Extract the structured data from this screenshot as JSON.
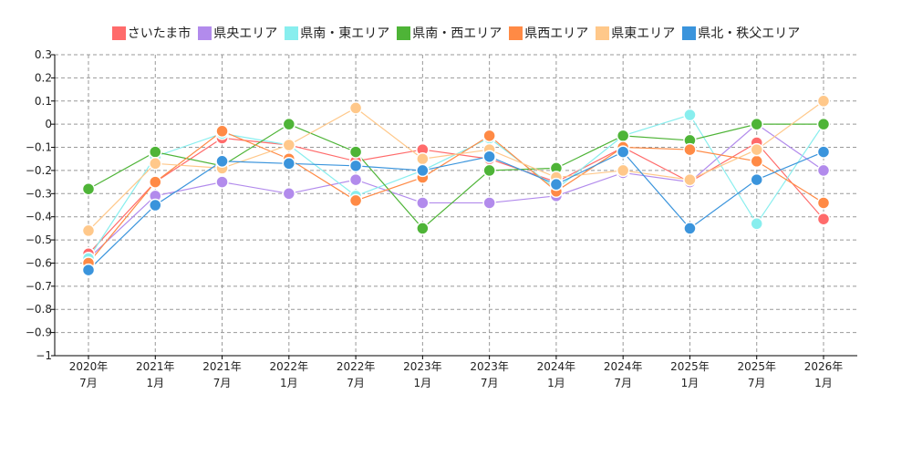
{
  "chart_data": {
    "type": "line",
    "title": "",
    "xlabel": "",
    "ylabel": "",
    "ylim": [
      -1,
      0.3
    ],
    "yticks": [
      "0.3",
      "0.2",
      "0.1",
      "0",
      "−0.1",
      "−0.2",
      "−0.3",
      "−0.4",
      "−0.5",
      "−0.6",
      "−0.7",
      "−0.8",
      "−0.9",
      "−1"
    ],
    "ytick_values": [
      0.3,
      0.2,
      0.1,
      0,
      -0.1,
      -0.2,
      -0.3,
      -0.4,
      -0.5,
      -0.6,
      -0.7,
      -0.8,
      -0.9,
      -1
    ],
    "categories": [
      [
        "2020年",
        "7月"
      ],
      [
        "2021年",
        "1月"
      ],
      [
        "2021年",
        "7月"
      ],
      [
        "2022年",
        "1月"
      ],
      [
        "2022年",
        "7月"
      ],
      [
        "2023年",
        "1月"
      ],
      [
        "2023年",
        "7月"
      ],
      [
        "2024年",
        "1月"
      ],
      [
        "2024年",
        "7月"
      ],
      [
        "2025年",
        "1月"
      ],
      [
        "2025年",
        "7月"
      ],
      [
        "2026年",
        "1月"
      ]
    ],
    "grid": true,
    "legend_position": "top-center",
    "series": [
      {
        "name": "さいたま市",
        "color": "#ff6b6b",
        "values": [
          -0.56,
          -0.25,
          -0.06,
          -0.09,
          -0.16,
          -0.11,
          -0.15,
          -0.25,
          -0.1,
          -0.25,
          -0.08,
          -0.41
        ]
      },
      {
        "name": "県央エリア",
        "color": "#b28bec",
        "values": [
          -0.58,
          -0.31,
          -0.25,
          -0.3,
          -0.24,
          -0.34,
          -0.34,
          -0.31,
          -0.21,
          -0.25,
          0.0,
          -0.2
        ]
      },
      {
        "name": "県南・東エリア",
        "color": "#88eeee",
        "values": [
          -0.58,
          -0.14,
          -0.04,
          -0.09,
          -0.31,
          -0.2,
          -0.06,
          -0.28,
          -0.05,
          0.04,
          -0.43,
          0.0
        ]
      },
      {
        "name": "県南・西エリア",
        "color": "#4eb437",
        "values": [
          -0.28,
          -0.12,
          -0.18,
          0.0,
          -0.12,
          -0.45,
          -0.2,
          -0.19,
          -0.05,
          -0.07,
          0.0,
          0.0
        ]
      },
      {
        "name": "県西エリア",
        "color": "#ff8a45",
        "values": [
          -0.6,
          -0.25,
          -0.03,
          -0.15,
          -0.33,
          -0.23,
          -0.05,
          -0.29,
          -0.1,
          -0.11,
          -0.16,
          -0.34
        ]
      },
      {
        "name": "県東エリア",
        "color": "#ffc88a",
        "values": [
          -0.46,
          -0.17,
          -0.19,
          -0.09,
          0.07,
          -0.15,
          -0.11,
          -0.23,
          -0.2,
          -0.24,
          -0.11,
          0.1
        ]
      },
      {
        "name": "県北・秩父エリア",
        "color": "#3a94dc",
        "values": [
          -0.63,
          -0.35,
          -0.16,
          -0.17,
          -0.18,
          -0.2,
          -0.14,
          -0.26,
          -0.12,
          -0.45,
          -0.24,
          -0.12
        ]
      }
    ]
  }
}
